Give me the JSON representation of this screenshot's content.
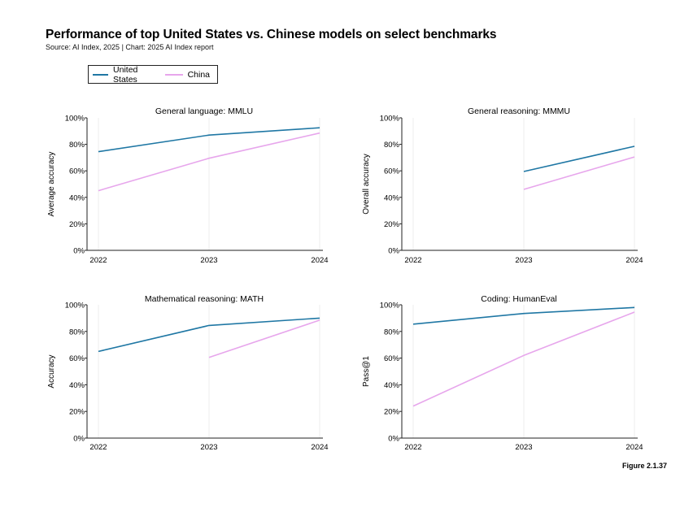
{
  "header": {
    "title": "Performance of top United States vs. Chinese models on select benchmarks",
    "source": "Source: AI Index, 2025 | Chart: 2025 AI Index report"
  },
  "legend": [
    {
      "name": "United States",
      "color": "#1f77a4"
    },
    {
      "name": "China",
      "color": "#e7a6ec"
    }
  ],
  "figure_label": "Figure 2.1.37",
  "chart_data": [
    {
      "type": "line",
      "title": "General language: MMLU",
      "ylabel": "Average accuracy",
      "x": [
        "2022",
        "2023",
        "2024"
      ],
      "ylim": [
        0,
        100
      ],
      "yticks": [
        "0%",
        "20%",
        "40%",
        "60%",
        "80%",
        "100%"
      ],
      "series": [
        {
          "name": "United States",
          "values": [
            74.5,
            87,
            92.5
          ]
        },
        {
          "name": "China",
          "values": [
            45,
            69.5,
            88.5
          ]
        }
      ]
    },
    {
      "type": "line",
      "title": "General reasoning: MMMU",
      "ylabel": "Overall accuracy",
      "x": [
        "2022",
        "2023",
        "2024"
      ],
      "ylim": [
        0,
        100
      ],
      "yticks": [
        "0%",
        "20%",
        "40%",
        "60%",
        "80%",
        "100%"
      ],
      "series": [
        {
          "name": "United States",
          "values": [
            null,
            59.5,
            78.5
          ]
        },
        {
          "name": "China",
          "values": [
            null,
            46,
            70.5
          ]
        }
      ]
    },
    {
      "type": "line",
      "title": "Mathematical reasoning: MATH",
      "ylabel": "Accuracy",
      "x": [
        "2022",
        "2023",
        "2024"
      ],
      "ylim": [
        0,
        100
      ],
      "yticks": [
        "0%",
        "20%",
        "40%",
        "60%",
        "80%",
        "100%"
      ],
      "series": [
        {
          "name": "United States",
          "values": [
            65,
            84.5,
            90
          ]
        },
        {
          "name": "China",
          "values": [
            null,
            60.5,
            88.5
          ]
        }
      ]
    },
    {
      "type": "line",
      "title": "Coding: HumanEval",
      "ylabel": "Pass@1",
      "x": [
        "2022",
        "2023",
        "2024"
      ],
      "ylim": [
        0,
        100
      ],
      "yticks": [
        "0%",
        "20%",
        "40%",
        "60%",
        "80%",
        "100%"
      ],
      "series": [
        {
          "name": "United States",
          "values": [
            85.5,
            93.5,
            98
          ]
        },
        {
          "name": "China",
          "values": [
            24,
            62,
            94.5
          ]
        }
      ]
    }
  ]
}
